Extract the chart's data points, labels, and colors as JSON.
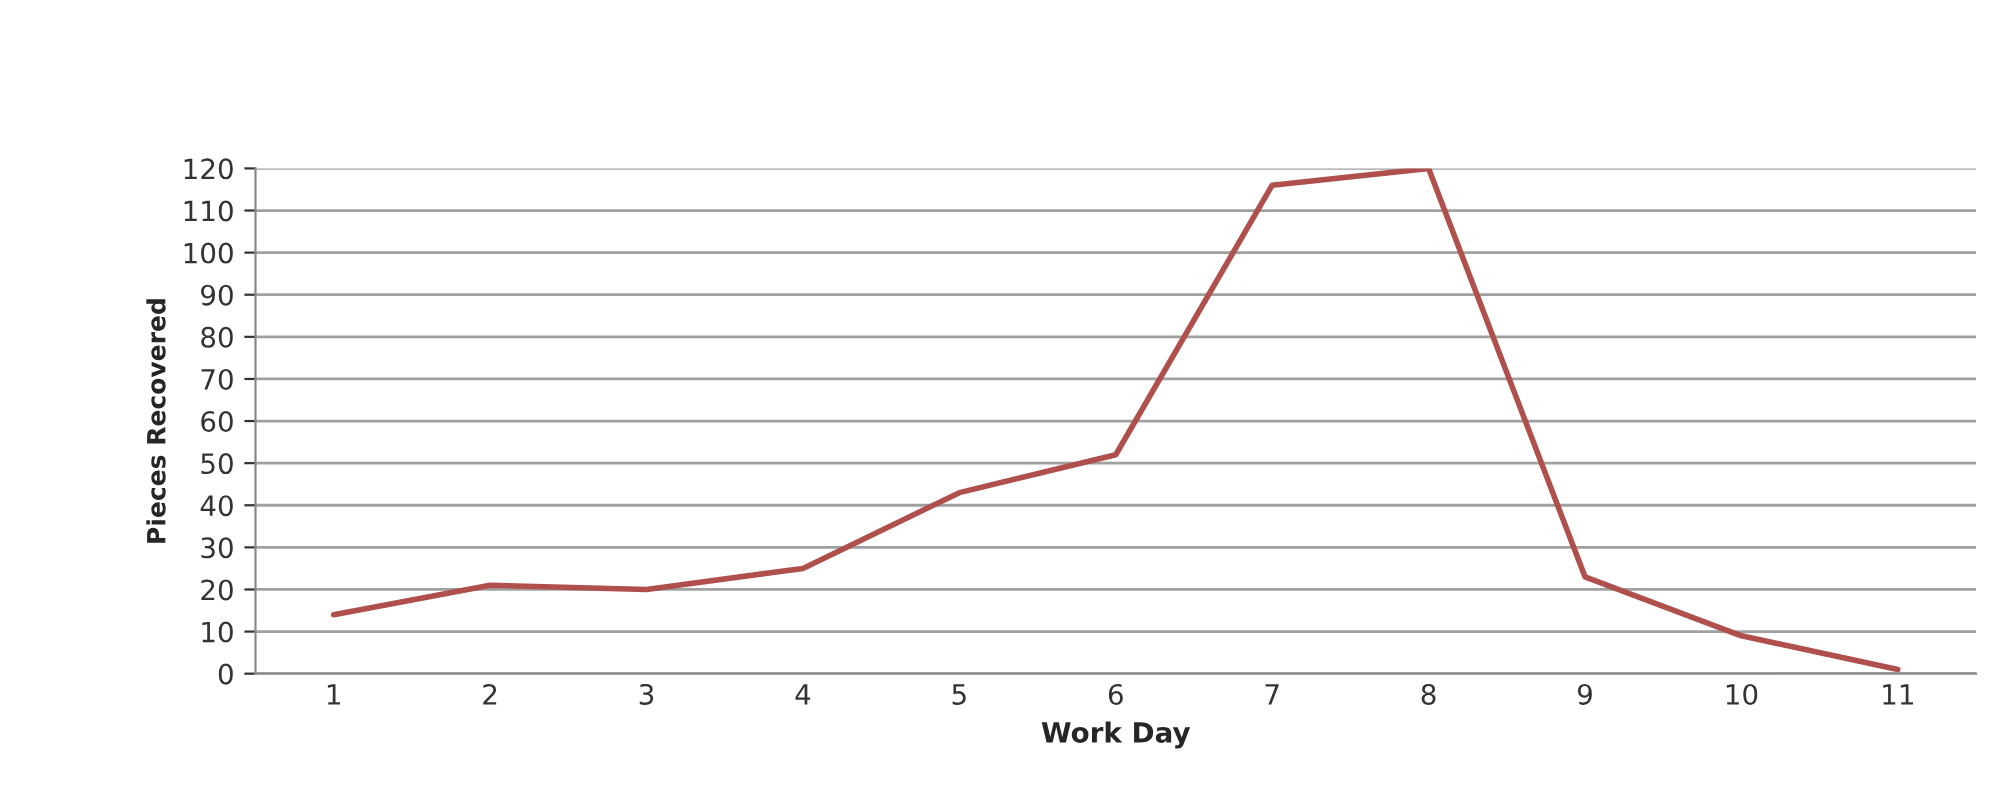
{
  "chart_data": {
    "type": "line",
    "xlabel": "Work Day",
    "ylabel": "Pieces Recovered",
    "categories": [
      "1",
      "2",
      "3",
      "4",
      "5",
      "6",
      "7",
      "8",
      "9",
      "10",
      "11"
    ],
    "series": [
      {
        "color": "#b0504d",
        "values": [
          14,
          21,
          20,
          25,
          43,
          52,
          116,
          120,
          23,
          9,
          1
        ]
      }
    ],
    "ylim": [
      0,
      120
    ],
    "yticks": [
      0,
      10,
      20,
      30,
      40,
      50,
      60,
      70,
      80,
      90,
      100,
      110,
      120
    ],
    "grid": "y",
    "legend": false,
    "marker": "none",
    "line_style": "solid"
  }
}
